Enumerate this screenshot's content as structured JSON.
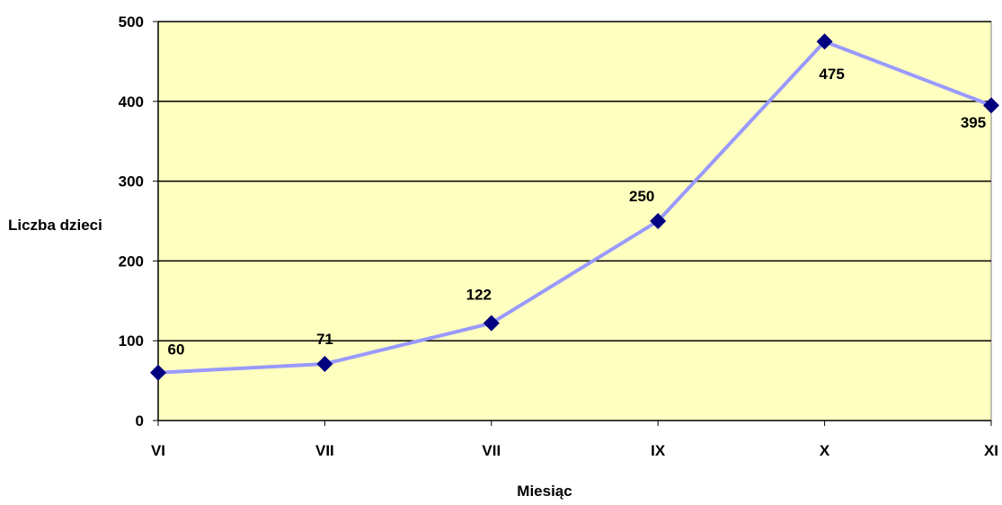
{
  "chart_data": {
    "type": "line",
    "categories": [
      "VI",
      "VII",
      "VII",
      "IX",
      "X",
      "XI"
    ],
    "series": [
      {
        "values": [
          60,
          71,
          122,
          250,
          475,
          395
        ]
      }
    ],
    "data_labels": [
      "60",
      "71",
      "122",
      "250",
      "475",
      "395"
    ],
    "xlabel": "Miesiąc",
    "ylabel": "Liczba dzieci",
    "ylim": [
      0,
      500
    ],
    "yticks": [
      0,
      100,
      200,
      300,
      400,
      500
    ],
    "grid": true,
    "legend": "none",
    "colors": {
      "plot_background": "#ffffc0",
      "line": "#9999ff",
      "marker": "#000080",
      "grid": "#000000"
    }
  }
}
